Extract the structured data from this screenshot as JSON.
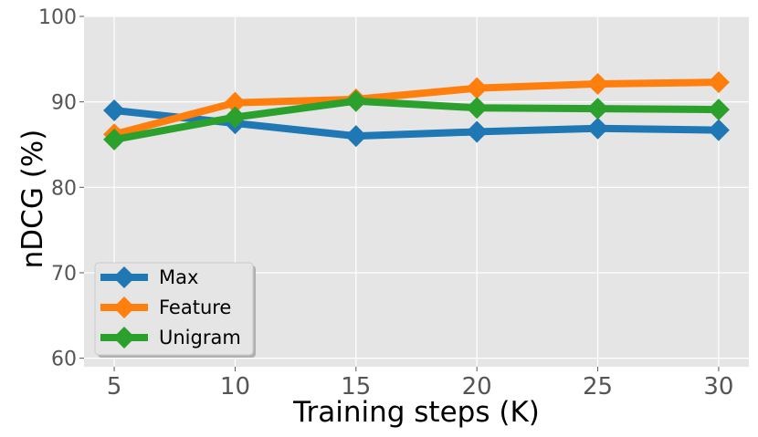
{
  "chart_data": {
    "type": "line",
    "title": "",
    "xlabel": "Training steps (K)",
    "ylabel": "nDCG (%)",
    "x": [
      5,
      10,
      15,
      20,
      25,
      30
    ],
    "x_ticks": [
      5,
      10,
      15,
      20,
      25,
      30
    ],
    "xlim": [
      3.75,
      31.25
    ],
    "ylim": [
      59,
      100
    ],
    "y_ticks": [
      60,
      70,
      80,
      90,
      100
    ],
    "grid": true,
    "legend_position": "lower-left",
    "marker": "diamond",
    "series": [
      {
        "name": "Max",
        "color": "#1f77b4",
        "values": [
          89.0,
          87.5,
          86.0,
          86.5,
          86.9,
          86.7
        ]
      },
      {
        "name": "Feature",
        "color": "#ff7f0e",
        "values": [
          86.2,
          89.9,
          90.3,
          91.6,
          92.1,
          92.3
        ]
      },
      {
        "name": "Unigram",
        "color": "#2ca02c",
        "values": [
          85.6,
          88.2,
          90.1,
          89.3,
          89.2,
          89.1
        ]
      }
    ]
  }
}
